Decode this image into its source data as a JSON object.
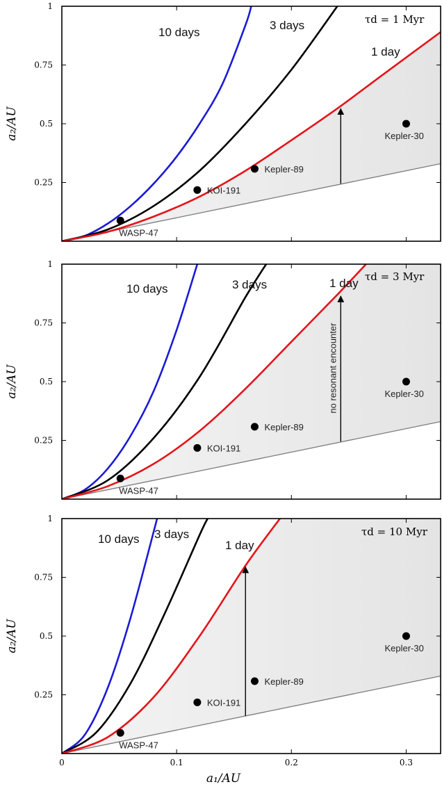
{
  "figure": {
    "xlabel": "a₁/AU",
    "ylabel": "a₂/AU",
    "xlim": [
      0,
      0.33
    ],
    "ylim": [
      0,
      1
    ],
    "xticks": [
      {
        "value": 0,
        "label": "0"
      },
      {
        "value": 0.1,
        "label": "0.1"
      },
      {
        "value": 0.2,
        "label": "0.2"
      },
      {
        "value": 0.3,
        "label": "0.3"
      }
    ],
    "yticks": [
      {
        "value": 0.25,
        "label": "0.25"
      },
      {
        "value": 0.5,
        "label": "0.5"
      },
      {
        "value": 0.75,
        "label": "0.75"
      },
      {
        "value": 1,
        "label": "1"
      }
    ],
    "colors": {
      "ten_days": "#1a1ad6",
      "three_days": "#000000",
      "one_day": "#e3141a",
      "lower_line": "#7a7a7a",
      "shade": "#e4e4e4"
    }
  },
  "chart_data": [
    {
      "type": "line",
      "panel": "top",
      "tau_label": "τd = 1 Myr",
      "series": [
        {
          "name": "10 days",
          "x": [
            0,
            0.02,
            0.04,
            0.06,
            0.08,
            0.1,
            0.12,
            0.14,
            0.16,
            0.165
          ],
          "y": [
            0,
            0.023,
            0.075,
            0.15,
            0.245,
            0.36,
            0.5,
            0.67,
            0.92,
            1.0
          ]
        },
        {
          "name": "3 days",
          "x": [
            0,
            0.04,
            0.08,
            0.12,
            0.16,
            0.2,
            0.24
          ],
          "y": [
            0,
            0.05,
            0.15,
            0.3,
            0.5,
            0.73,
            1.0
          ]
        },
        {
          "name": "1 day",
          "x": [
            0,
            0.04,
            0.08,
            0.12,
            0.16,
            0.2,
            0.24,
            0.28,
            0.33
          ],
          "y": [
            0,
            0.04,
            0.105,
            0.19,
            0.3,
            0.43,
            0.565,
            0.71,
            0.89
          ]
        }
      ],
      "lower_line": {
        "x": [
          0,
          0.33
        ],
        "y": [
          0,
          0.33
        ]
      },
      "arrow": {
        "x": 0.243,
        "y_from": 0.245,
        "y_to": 0.57,
        "label": ""
      },
      "curve_labels": [
        "10 days",
        "3 days",
        "1 day"
      ],
      "planets": [
        {
          "name": "WASP-47",
          "a1": 0.051,
          "a2": 0.088
        },
        {
          "name": "KOI-191",
          "a1": 0.118,
          "a2": 0.218
        },
        {
          "name": "Kepler-89",
          "a1": 0.168,
          "a2": 0.308
        },
        {
          "name": "Kepler-30",
          "a1": 0.3,
          "a2": 0.5
        }
      ]
    },
    {
      "type": "line",
      "panel": "middle",
      "tau_label": "τd = 3 Myr",
      "series": [
        {
          "name": "10 days",
          "x": [
            0,
            0.02,
            0.04,
            0.06,
            0.08,
            0.1,
            0.118
          ],
          "y": [
            0,
            0.04,
            0.13,
            0.27,
            0.46,
            0.72,
            1.0
          ]
        },
        {
          "name": "3 days",
          "x": [
            0,
            0.04,
            0.08,
            0.12,
            0.16,
            0.178
          ],
          "y": [
            0,
            0.08,
            0.26,
            0.52,
            0.86,
            1.0
          ]
        },
        {
          "name": "1 day",
          "x": [
            0,
            0.04,
            0.08,
            0.12,
            0.16,
            0.2,
            0.24,
            0.265
          ],
          "y": [
            0,
            0.055,
            0.15,
            0.29,
            0.47,
            0.67,
            0.87,
            1.0
          ]
        }
      ],
      "lower_line": {
        "x": [
          0,
          0.33
        ],
        "y": [
          0,
          0.33
        ]
      },
      "arrow": {
        "x": 0.243,
        "y_from": 0.245,
        "y_to": 0.87,
        "label": "no resonant encounter"
      },
      "curve_labels": [
        "10 days",
        "3 days",
        "1 day"
      ],
      "planets": [
        {
          "name": "WASP-47",
          "a1": 0.051,
          "a2": 0.088
        },
        {
          "name": "KOI-191",
          "a1": 0.118,
          "a2": 0.218
        },
        {
          "name": "Kepler-89",
          "a1": 0.168,
          "a2": 0.308
        },
        {
          "name": "Kepler-30",
          "a1": 0.3,
          "a2": 0.5
        }
      ]
    },
    {
      "type": "line",
      "panel": "bottom",
      "tau_label": "τd = 10 Myr",
      "series": [
        {
          "name": "10 days",
          "x": [
            0,
            0.02,
            0.04,
            0.06,
            0.083
          ],
          "y": [
            0,
            0.08,
            0.28,
            0.58,
            1.0
          ]
        },
        {
          "name": "3 days",
          "x": [
            0,
            0.03,
            0.06,
            0.09,
            0.12,
            0.127
          ],
          "y": [
            0,
            0.09,
            0.3,
            0.6,
            0.93,
            1.0
          ]
        },
        {
          "name": "1 day",
          "x": [
            0,
            0.04,
            0.08,
            0.12,
            0.16,
            0.19
          ],
          "y": [
            0,
            0.07,
            0.24,
            0.5,
            0.8,
            1.0
          ]
        }
      ],
      "lower_line": {
        "x": [
          0,
          0.33
        ],
        "y": [
          0,
          0.33
        ]
      },
      "arrow": {
        "x": 0.16,
        "y_from": 0.16,
        "y_to": 0.8,
        "label": ""
      },
      "curve_labels": [
        "10 days",
        "3 days",
        "1 day"
      ],
      "planets": [
        {
          "name": "WASP-47",
          "a1": 0.051,
          "a2": 0.088
        },
        {
          "name": "KOI-191",
          "a1": 0.118,
          "a2": 0.218
        },
        {
          "name": "Kepler-89",
          "a1": 0.168,
          "a2": 0.308
        },
        {
          "name": "Kepler-30",
          "a1": 0.3,
          "a2": 0.5
        }
      ]
    }
  ]
}
